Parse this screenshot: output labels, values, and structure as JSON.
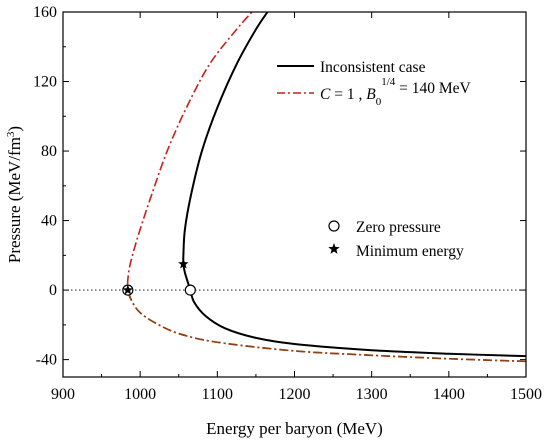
{
  "chart_data": {
    "type": "line",
    "xlabel": "Energy per baryon (MeV)",
    "ylabel_main": "Pressure (MeV/fm",
    "ylabel_sup": "3",
    "ylabel_close": ")",
    "xlim": [
      900,
      1500
    ],
    "ylim": [
      -50,
      160
    ],
    "xticks": [
      900,
      1000,
      1100,
      1200,
      1300,
      1400,
      1500
    ],
    "yticks": [
      -40,
      0,
      40,
      80,
      120,
      160
    ],
    "zero_line": true,
    "legend_position": "top-right",
    "series": [
      {
        "name": "Inconsistent case",
        "style": "solid",
        "color": "#000000",
        "points": [
          [
            1500,
            -38
          ],
          [
            1400,
            -36.6
          ],
          [
            1300,
            -34.6
          ],
          [
            1200,
            -31
          ],
          [
            1150,
            -27.5
          ],
          [
            1110,
            -22
          ],
          [
            1085,
            -15
          ],
          [
            1070,
            -7
          ],
          [
            1065,
            0
          ],
          [
            1058,
            10
          ],
          [
            1056,
            15
          ],
          [
            1056,
            20
          ],
          [
            1058,
            35
          ],
          [
            1066,
            55
          ],
          [
            1080,
            80
          ],
          [
            1100,
            105
          ],
          [
            1125,
            130
          ],
          [
            1150,
            150
          ],
          [
            1165,
            160
          ]
        ]
      },
      {
        "name": "C = 1 , B0^1/4 = 140 MeV",
        "style": "dash-dot",
        "color": "#c8201a",
        "lower_color": "#8b4513",
        "points": [
          [
            1500,
            -41
          ],
          [
            1400,
            -39.5
          ],
          [
            1300,
            -37.5
          ],
          [
            1200,
            -35
          ],
          [
            1100,
            -30
          ],
          [
            1050,
            -25
          ],
          [
            1020,
            -19
          ],
          [
            1000,
            -13
          ],
          [
            990,
            -7
          ],
          [
            984,
            0
          ],
          [
            985,
            10
          ],
          [
            990,
            20
          ],
          [
            1000,
            35
          ],
          [
            1015,
            55
          ],
          [
            1035,
            80
          ],
          [
            1060,
            105
          ],
          [
            1090,
            130
          ],
          [
            1125,
            150
          ],
          [
            1145,
            160
          ]
        ]
      }
    ],
    "markers": [
      {
        "name": "Zero pressure",
        "symbol": "circle",
        "points": [
          [
            1065,
            0
          ],
          [
            984,
            0
          ]
        ]
      },
      {
        "name": "Minimum energy",
        "symbol": "star",
        "points": [
          [
            1056,
            15
          ],
          [
            984,
            0
          ]
        ]
      }
    ],
    "legend": {
      "line1_label": "Inconsistent case",
      "line2_c": "C",
      "line2_eq1": " = 1 , ",
      "line2_b": "B",
      "line2_sub": "0",
      "line2_sup": "1/4",
      "line2_eq2": " = 140 MeV",
      "marker1_label": "Zero pressure",
      "marker2_label": "Minimum energy"
    }
  }
}
